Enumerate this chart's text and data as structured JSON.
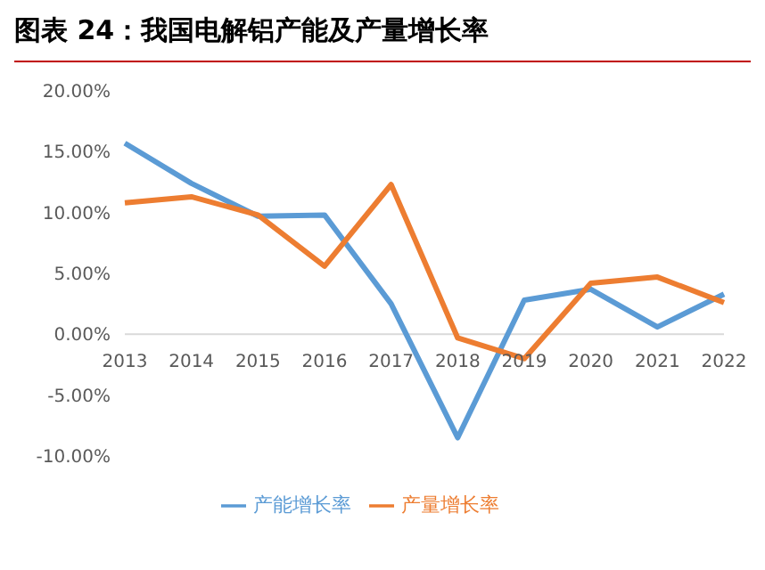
{
  "chart_data": {
    "type": "line",
    "title": "图表 24：我国电解铝产能及产量增长率",
    "categories": [
      "2013",
      "2014",
      "2015",
      "2016",
      "2017",
      "2018",
      "2019",
      "2020",
      "2021",
      "2022"
    ],
    "series": [
      {
        "name": "产能增长率",
        "color": "#5b9bd5",
        "values": [
          15.7,
          12.4,
          9.7,
          9.8,
          2.5,
          -8.5,
          2.8,
          3.7,
          0.6,
          3.3
        ]
      },
      {
        "name": "产量增长率",
        "color": "#ed7d31",
        "values": [
          10.8,
          11.3,
          9.8,
          5.6,
          12.3,
          -0.3,
          -2.0,
          4.2,
          4.7,
          2.6
        ]
      }
    ],
    "ylim": [
      -10,
      20
    ],
    "yticks": [
      {
        "value": -10,
        "label": "-10.00%"
      },
      {
        "value": -5,
        "label": "-5.00%"
      },
      {
        "value": 0,
        "label": "0.00%"
      },
      {
        "value": 5,
        "label": "5.00%"
      },
      {
        "value": 10,
        "label": "10.00%"
      },
      {
        "value": 15,
        "label": "15.00%"
      },
      {
        "value": 20,
        "label": "20.00%"
      }
    ],
    "grid": false,
    "legend": "bottom",
    "marker": "none",
    "line_style": "solid"
  }
}
